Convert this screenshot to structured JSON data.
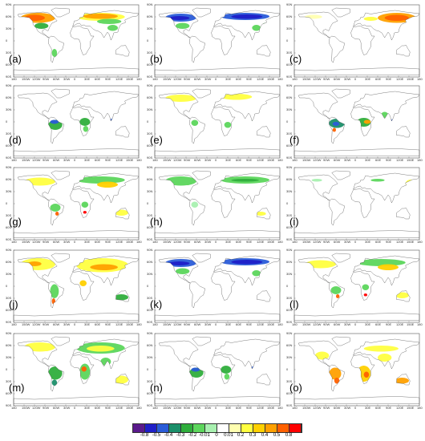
{
  "lat_labels": [
    "90N",
    "60N",
    "30N",
    "0",
    "30S",
    "60S",
    "90S"
  ],
  "lon_labels": [
    "180",
    "150W",
    "120W",
    "90W",
    "60W",
    "30W",
    "0",
    "30E",
    "60E",
    "90E",
    "120E",
    "150E",
    "180"
  ],
  "panels": [
    {
      "label": "(a)",
      "pattern": "north-warm"
    },
    {
      "label": "(b)",
      "pattern": "north-cool"
    },
    {
      "label": "(c)",
      "pattern": "asia-warm"
    },
    {
      "label": "(d)",
      "pattern": "tropic-cool"
    },
    {
      "label": "(e)",
      "pattern": "north-light"
    },
    {
      "label": "(f)",
      "pattern": "tropic-strong"
    },
    {
      "label": "(g)",
      "pattern": "mixed-warm"
    },
    {
      "label": "(h)",
      "pattern": "north-green"
    },
    {
      "label": "(i)",
      "pattern": "sparse"
    },
    {
      "label": "(j)",
      "pattern": "global-yellow"
    },
    {
      "label": "(k)",
      "pattern": "north-cool"
    },
    {
      "label": "(l)",
      "pattern": "mixed-warm"
    },
    {
      "label": "(m)",
      "pattern": "global-green"
    },
    {
      "label": "(n)",
      "pattern": "tropic-cool"
    },
    {
      "label": "(o)",
      "pattern": "south-warm"
    }
  ],
  "colorbar": {
    "labels": [
      "-0.8",
      "-0.5",
      "-0.4",
      "-0.3",
      "-0.2",
      "-0.01",
      "0",
      "0.01",
      "0.2",
      "0.3",
      "0.4",
      "0.5",
      "0.8"
    ],
    "colors": [
      "#5a1a8c",
      "#1f1fc8",
      "#2a5cd8",
      "#1b8f6a",
      "#2fae3c",
      "#5cd65c",
      "#a8f0b0",
      "#ffffff",
      "#ffffb0",
      "#ffff40",
      "#ffd000",
      "#ffa000",
      "#ff6000",
      "#ff0000"
    ]
  }
}
